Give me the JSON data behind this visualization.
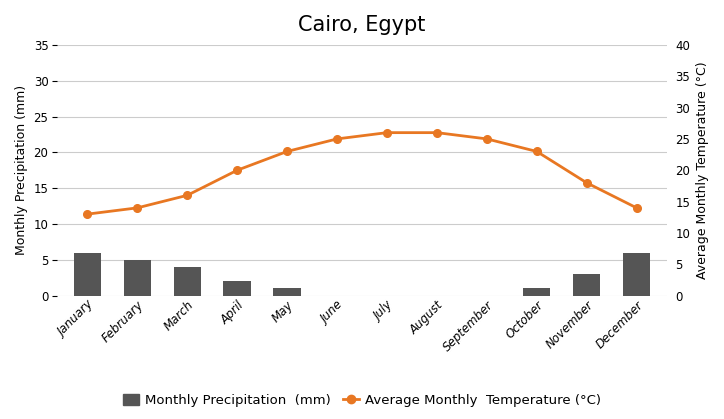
{
  "title": "Cairo, Egypt",
  "months": [
    "January",
    "February",
    "March",
    "April",
    "May",
    "June",
    "July",
    "August",
    "September",
    "October",
    "November",
    "December"
  ],
  "precipitation": [
    6,
    5,
    4,
    2,
    1,
    0,
    0,
    0,
    0,
    1,
    3,
    6
  ],
  "temperature": [
    13,
    14,
    16,
    20,
    23,
    25,
    26,
    26,
    25,
    23,
    18,
    14
  ],
  "bar_color": "#555555",
  "line_color": "#E87722",
  "marker_color": "#E87722",
  "background_color": "#ffffff",
  "grid_color": "#cccccc",
  "ylabel_left": "Monthly Precipitation (mm)",
  "ylabel_right": "Average Monthly Temperature (°C)",
  "ylim_left": [
    0,
    35
  ],
  "ylim_right": [
    0,
    40
  ],
  "yticks_left": [
    0,
    5,
    10,
    15,
    20,
    25,
    30,
    35
  ],
  "yticks_right": [
    0,
    5,
    10,
    15,
    20,
    25,
    30,
    35,
    40
  ],
  "legend_precip": "Monthly Precipitation  (mm)",
  "legend_temp": "Average Monthly  Temperature (°C)",
  "title_fontsize": 15,
  "axis_label_fontsize": 9,
  "tick_fontsize": 8.5,
  "legend_fontsize": 9.5
}
